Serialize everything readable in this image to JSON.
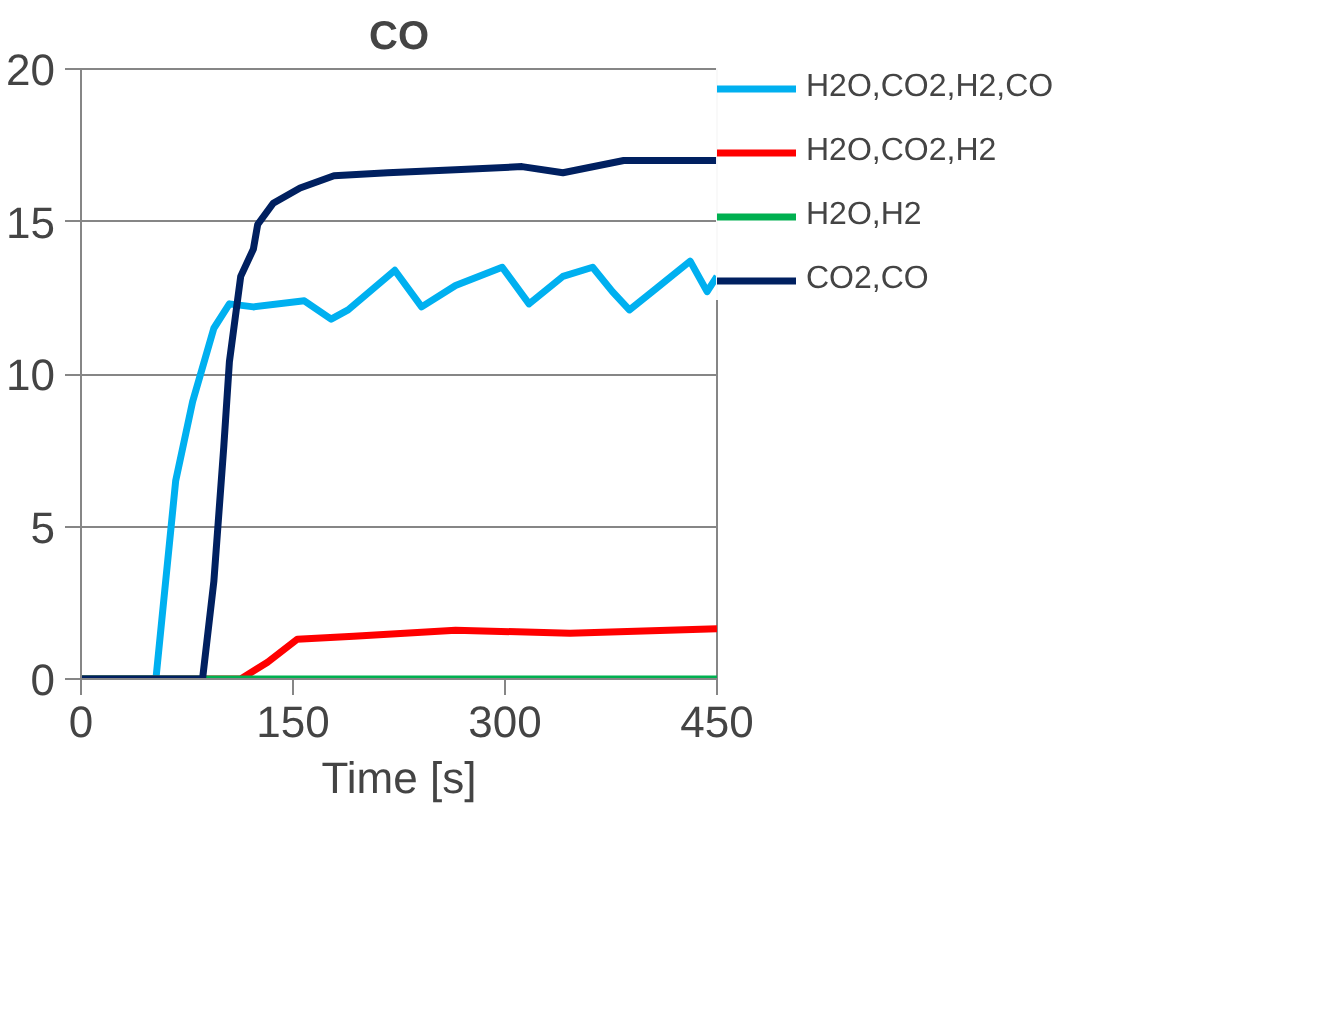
{
  "chart_data": {
    "type": "line",
    "title": "CO",
    "xlabel": "Time [s]",
    "xlim": [
      0,
      450
    ],
    "xticks": [
      0,
      150,
      300,
      450
    ],
    "ylim": [
      0,
      20
    ],
    "yticks": [
      0,
      5,
      10,
      15,
      20
    ],
    "grid": "y",
    "legend": "right",
    "marker": "none",
    "line_style": "solid",
    "series": [
      {
        "name": "H2O,CO2,H2,CO",
        "color": "#00b0f0",
        "x": [
          0,
          53,
          67,
          79,
          94,
          105,
          122,
          158,
          177,
          189,
          222,
          241,
          265,
          298,
          317,
          341,
          362,
          376,
          388,
          407,
          431,
          443,
          450
        ],
        "values": [
          0,
          0,
          6.5,
          9.1,
          11.5,
          12.3,
          12.2,
          12.4,
          11.8,
          12.1,
          13.4,
          12.2,
          12.9,
          13.5,
          12.3,
          13.2,
          13.5,
          12.7,
          12.1,
          12.8,
          13.7,
          12.7,
          13.2
        ]
      },
      {
        "name": "H2O,CO2,H2",
        "color": "#ff0000",
        "x": [
          0,
          113,
          132,
          153,
          193,
          265,
          346,
          450
        ],
        "values": [
          0,
          0,
          0.55,
          1.3,
          1.4,
          1.6,
          1.5,
          1.65
        ]
      },
      {
        "name": "H2O,H2",
        "color": "#00b050",
        "x": [
          0,
          450
        ],
        "values": [
          0,
          0
        ]
      },
      {
        "name": "CO2,CO",
        "color": "#002060",
        "x": [
          0,
          86,
          94,
          101,
          105,
          113,
          122,
          125,
          136,
          155,
          179,
          217,
          265,
          312,
          341,
          384,
          450
        ],
        "values": [
          0,
          0,
          3.2,
          7.6,
          10.4,
          13.2,
          14.1,
          14.9,
          15.6,
          16.1,
          16.5,
          16.6,
          16.7,
          16.8,
          16.6,
          17.0,
          17.0
        ]
      }
    ]
  }
}
